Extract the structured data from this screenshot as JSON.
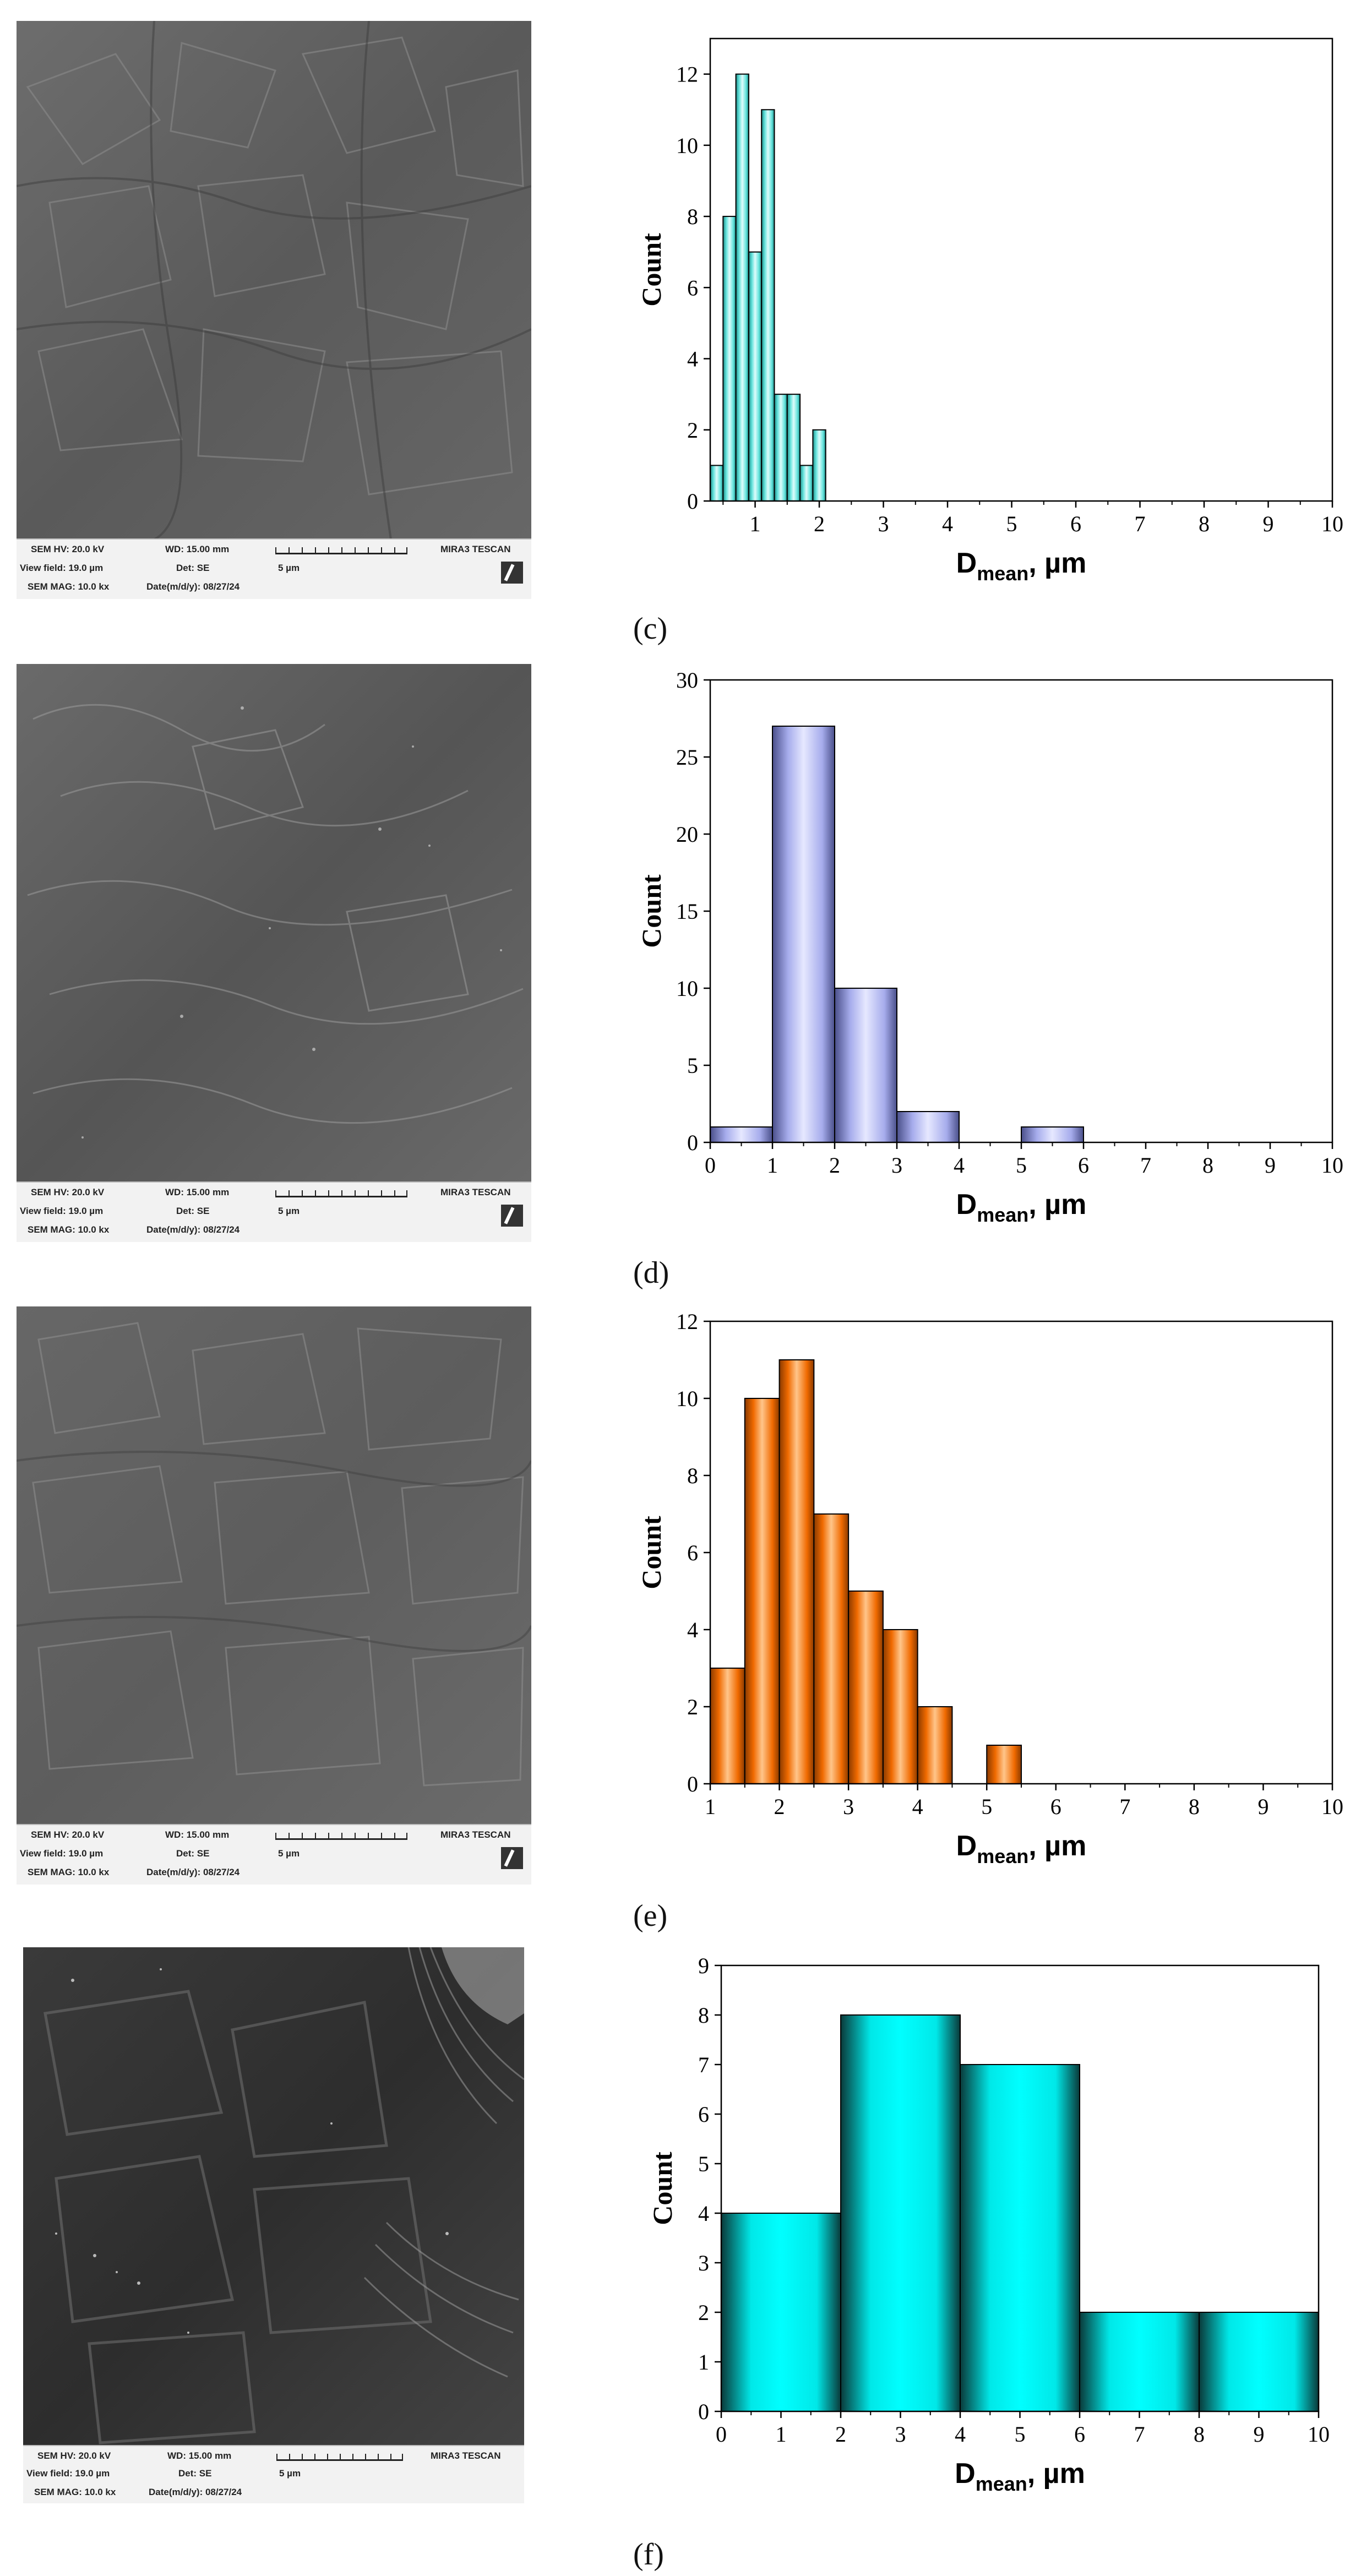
{
  "sem_footer": {
    "hv": "SEM HV: 20.0 kV",
    "wd": "WD: 15.00 mm",
    "brand": "MIRA3 TESCAN",
    "view_field": "View field: 19.0 µm",
    "det": "Det: SE",
    "scale": "5 µm",
    "mag": "SEM MAG: 10.0 kx",
    "date": "Date(m/d/y): 08/27/24"
  },
  "panels": [
    {
      "caption": "(c)"
    },
    {
      "caption": "(d)"
    },
    {
      "caption": "(e)"
    },
    {
      "caption": "(f)"
    }
  ],
  "chart_data": [
    {
      "type": "bar",
      "title": "",
      "xlabel": "D",
      "xlabel_sub": "mean",
      "xlabel_unit": ", µm",
      "ylabel": "Count",
      "xlim": [
        0.3,
        10
      ],
      "ylim": [
        0,
        13
      ],
      "xticks": [
        1,
        2,
        3,
        4,
        5,
        6,
        7,
        8,
        9,
        10
      ],
      "yticks": [
        0,
        2,
        4,
        6,
        8,
        10,
        12
      ],
      "bin_width": 0.2,
      "bins": [
        {
          "x0": 0.3,
          "count": 1
        },
        {
          "x0": 0.5,
          "count": 8
        },
        {
          "x0": 0.7,
          "count": 12
        },
        {
          "x0": 0.9,
          "count": 7
        },
        {
          "x0": 1.1,
          "count": 11
        },
        {
          "x0": 1.3,
          "count": 3
        },
        {
          "x0": 1.5,
          "count": 3
        },
        {
          "x0": 1.7,
          "count": 1
        },
        {
          "x0": 1.9,
          "count": 2
        }
      ],
      "color_light": "#dffcfb",
      "color_dark": "#1f8a86",
      "color_mid": "#63e3dc"
    },
    {
      "type": "bar",
      "title": "",
      "xlabel": "D",
      "xlabel_sub": "mean",
      "xlabel_unit": ", µm",
      "ylabel": "Count",
      "xlim": [
        0,
        10
      ],
      "ylim": [
        0,
        30
      ],
      "xticks": [
        0,
        1,
        2,
        3,
        4,
        5,
        6,
        7,
        8,
        9,
        10
      ],
      "yticks": [
        0,
        5,
        10,
        15,
        20,
        25,
        30
      ],
      "bin_width": 1,
      "bins": [
        {
          "x0": 0,
          "count": 1
        },
        {
          "x0": 1,
          "count": 27
        },
        {
          "x0": 2,
          "count": 10
        },
        {
          "x0": 3,
          "count": 2
        },
        {
          "x0": 5,
          "count": 1
        }
      ],
      "color_light": "#e6e8ff",
      "color_dark": "#4a4f8a",
      "color_mid": "#a6acec"
    },
    {
      "type": "bar",
      "title": "",
      "xlabel": "D",
      "xlabel_sub": "mean",
      "xlabel_unit": ", µm",
      "ylabel": "Count",
      "xlim": [
        1,
        10
      ],
      "ylim": [
        0,
        12
      ],
      "xticks": [
        1,
        2,
        3,
        4,
        5,
        6,
        7,
        8,
        9,
        10
      ],
      "yticks": [
        0,
        2,
        4,
        6,
        8,
        10,
        12
      ],
      "bin_width": 0.5,
      "bins": [
        {
          "x0": 1.0,
          "count": 3
        },
        {
          "x0": 1.5,
          "count": 10
        },
        {
          "x0": 2.0,
          "count": 11
        },
        {
          "x0": 2.5,
          "count": 7
        },
        {
          "x0": 3.0,
          "count": 5
        },
        {
          "x0": 3.5,
          "count": 4
        },
        {
          "x0": 4.0,
          "count": 2
        },
        {
          "x0": 5.0,
          "count": 1
        }
      ],
      "color_light": "#ffc58a",
      "color_dark": "#8a3a00",
      "color_mid": "#f06a00"
    },
    {
      "type": "bar",
      "title": "",
      "xlabel": "D",
      "xlabel_sub": "mean",
      "xlabel_unit": ", µm",
      "ylabel": "Count",
      "xlim": [
        0,
        10
      ],
      "ylim": [
        0,
        9
      ],
      "xticks": [
        0,
        1,
        2,
        3,
        4,
        5,
        6,
        7,
        8,
        9,
        10
      ],
      "yticks": [
        0,
        1,
        2,
        3,
        4,
        5,
        6,
        7,
        8,
        9
      ],
      "bin_width": 2,
      "bins": [
        {
          "x0": 0,
          "count": 4
        },
        {
          "x0": 2,
          "count": 8
        },
        {
          "x0": 4,
          "count": 7
        },
        {
          "x0": 6,
          "count": 2
        },
        {
          "x0": 8,
          "count": 2
        }
      ],
      "color_light": "#00ffff",
      "color_dark": "#0a3a3a",
      "color_mid": "#00e8e8"
    }
  ]
}
